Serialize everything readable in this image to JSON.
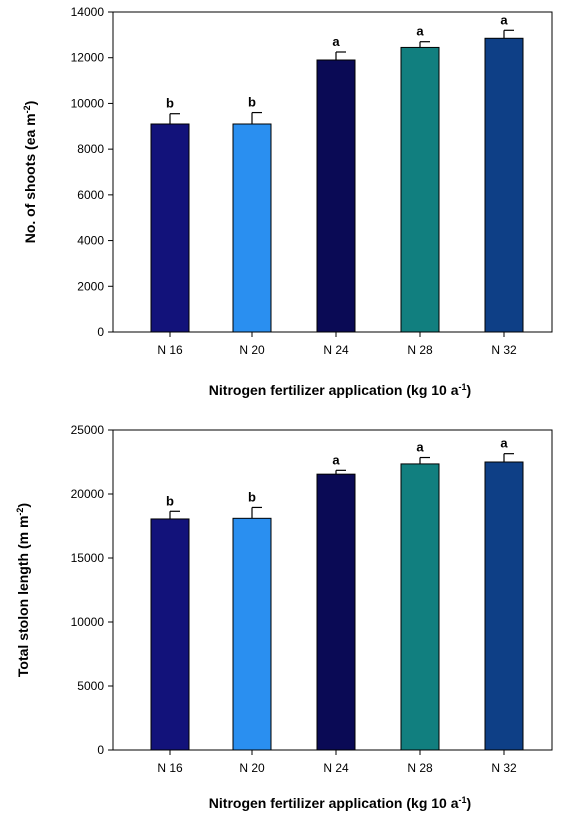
{
  "chart_data": [
    {
      "type": "bar",
      "categories": [
        "N 16",
        "N 20",
        "N 24",
        "N 28",
        "N 32"
      ],
      "values": [
        9100,
        9100,
        11900,
        12450,
        12850
      ],
      "errors": [
        450,
        500,
        350,
        250,
        350
      ],
      "significance": [
        "b",
        "b",
        "a",
        "a",
        "a"
      ],
      "colors": [
        "#12127a",
        "#2a8ff0",
        "#0a0a55",
        "#117f7f",
        "#0e3f86"
      ],
      "ylim": [
        0,
        14000
      ],
      "yticks": [
        0,
        2000,
        4000,
        6000,
        8000,
        10000,
        12000,
        14000
      ],
      "ylabel": {
        "main": "No. of  shoots (ea m",
        "sup": "-2",
        "close": ")"
      },
      "xlabel": {
        "main": "Nitrogen fertilizer application (kg 10 a",
        "sup": "-1",
        "close": ")"
      }
    },
    {
      "type": "bar",
      "categories": [
        "N 16",
        "N 20",
        "N 24",
        "N 28",
        "N 32"
      ],
      "values": [
        18050,
        18100,
        21550,
        22350,
        22500
      ],
      "errors": [
        600,
        850,
        300,
        500,
        650
      ],
      "significance": [
        "b",
        "b",
        "a",
        "a",
        "a"
      ],
      "colors": [
        "#12127a",
        "#2a8ff0",
        "#0a0a55",
        "#117f7f",
        "#0e3f86"
      ],
      "ylim": [
        0,
        25000
      ],
      "yticks": [
        0,
        5000,
        10000,
        15000,
        20000,
        25000
      ],
      "ylabel": {
        "main": "Total stolon length (m m",
        "sup": "-2",
        "close": ")"
      },
      "xlabel": {
        "main": "Nitrogen fertilizer application (kg 10 a",
        "sup": "-1",
        "close": ")"
      }
    }
  ]
}
